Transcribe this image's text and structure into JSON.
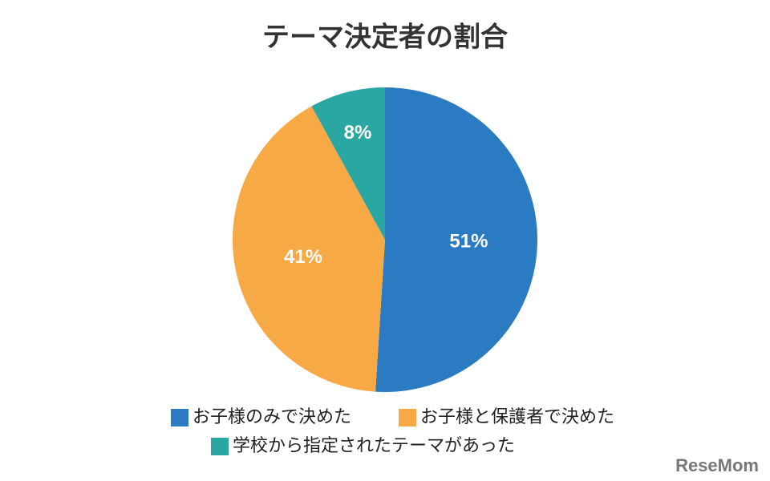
{
  "chart_data": {
    "type": "pie",
    "title": "テーマ決定者の割合",
    "categories": [
      "お子様のみで決めた",
      "お子様と保護者で決めた",
      "学校から指定されたテーマがあった"
    ],
    "values": [
      51,
      41,
      8
    ],
    "value_labels": [
      "51%",
      "41%",
      "8%"
    ],
    "colors": [
      "#2b7bc3",
      "#f6a945",
      "#2aa6a3"
    ],
    "watermark": "ReseMom"
  }
}
